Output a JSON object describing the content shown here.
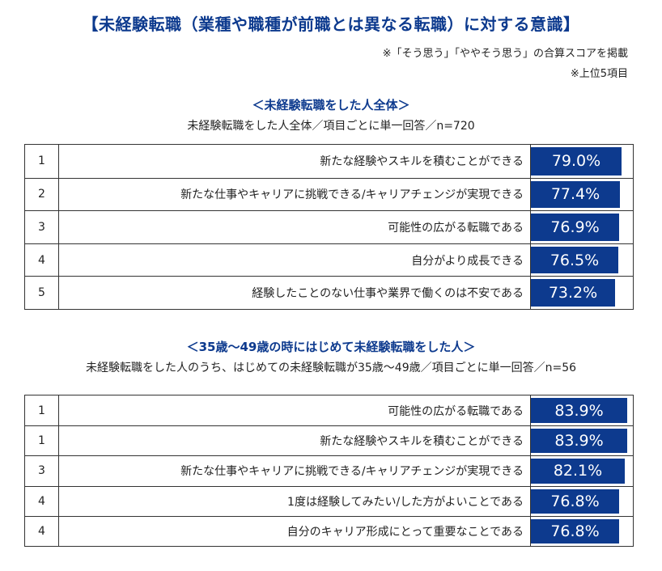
{
  "header": {
    "title": "【未経験転職（業種や職種が前職とは異なる転職）に対する意識】",
    "note1": "※「そう思う」「ややそう思う」の合算スコアを掲載",
    "note2": "※上位5項目"
  },
  "colors": {
    "accent": "#0d3a8e",
    "bar_text": "#ffffff"
  },
  "chart_data": [
    {
      "type": "bar",
      "title": "＜未経験転職をした人全体＞",
      "subtitle": "未経験転職をした人全体／項目ごとに単一回答／n=720",
      "scale_max": 100,
      "rows": [
        {
          "rank": "1",
          "label": "新たな経験やスキルを積むことができる",
          "value": 79.0,
          "value_label": "79.0%"
        },
        {
          "rank": "2",
          "label": "新たな仕事やキャリアに挑戦できる/キャリアチェンジが実現できる",
          "value": 77.4,
          "value_label": "77.4%"
        },
        {
          "rank": "3",
          "label": "可能性の広がる転職である",
          "value": 76.9,
          "value_label": "76.9%"
        },
        {
          "rank": "4",
          "label": "自分がより成長できる",
          "value": 76.5,
          "value_label": "76.5%"
        },
        {
          "rank": "5",
          "label": "経験したことのない仕事や業界で働くのは不安である",
          "value": 73.2,
          "value_label": "73.2%"
        }
      ]
    },
    {
      "type": "bar",
      "title": "＜35歳～49歳の時にはじめて未経験転職をした人＞",
      "subtitle": "未経験転職をした人のうち、はじめての未経験転職が35歳～49歳／項目ごとに単一回答／n=56",
      "scale_max": 100,
      "rows": [
        {
          "rank": "1",
          "label": "可能性の広がる転職である",
          "value": 83.9,
          "value_label": "83.9%"
        },
        {
          "rank": "1",
          "label": "新たな経験やスキルを積むことができる",
          "value": 83.9,
          "value_label": "83.9%"
        },
        {
          "rank": "3",
          "label": "新たな仕事やキャリアに挑戦できる/キャリアチェンジが実現できる",
          "value": 82.1,
          "value_label": "82.1%"
        },
        {
          "rank": "4",
          "label": "1度は経験してみたい/した方がよいことである",
          "value": 76.8,
          "value_label": "76.8%"
        },
        {
          "rank": "4",
          "label": "自分のキャリア形成にとって重要なことである",
          "value": 76.8,
          "value_label": "76.8%"
        }
      ]
    }
  ]
}
